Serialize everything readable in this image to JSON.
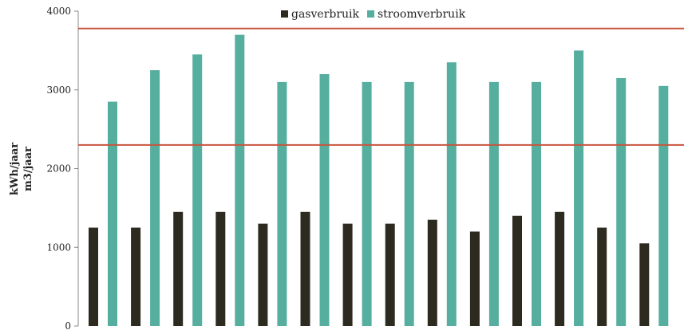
{
  "chart_data": {
    "type": "bar",
    "ylabel_line1": "kWh/jaar",
    "ylabel_line2": "m3/jaar",
    "ylim": [
      0,
      4000
    ],
    "yticks": [
      "0",
      "1000",
      "2000",
      "3000",
      "4000"
    ],
    "yticks_values": [
      0,
      1000,
      2000,
      3000,
      4000
    ],
    "grid": false,
    "legend_position": "top-center",
    "categories_count": 14,
    "series": [
      {
        "name": "gasverbruik",
        "color": "#2d2a20",
        "values": [
          1250,
          1250,
          1450,
          1450,
          1300,
          1450,
          1300,
          1300,
          1350,
          1200,
          1400,
          1450,
          1250,
          1050
        ]
      },
      {
        "name": "stroomverbruik",
        "color": "#56ae9f",
        "values": [
          2850,
          3250,
          3450,
          3700,
          3100,
          3200,
          3100,
          3100,
          3350,
          3100,
          3100,
          3500,
          3150,
          3050
        ]
      }
    ],
    "reference_lines": [
      {
        "value": 3780,
        "color": "#c8543e"
      },
      {
        "value": 2300,
        "color": "#c8543e"
      }
    ]
  }
}
